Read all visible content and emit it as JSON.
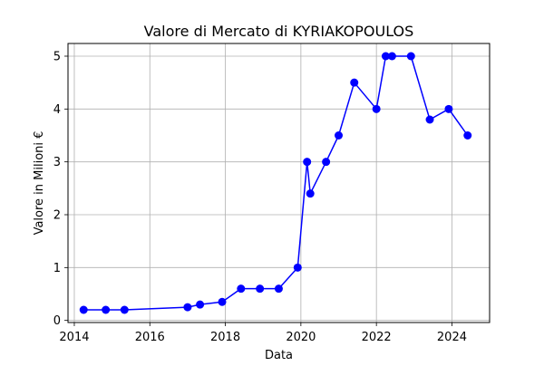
{
  "chart_data": {
    "type": "line",
    "title": "Valore di Mercato di KYRIAKOPOULOS",
    "xlabel": "Data",
    "ylabel": "Valore in Milioni €",
    "xlim": [
      "2013-11-01",
      "2024-12-31"
    ],
    "ylim": [
      -0.04,
      5.24
    ],
    "xticks": [
      "2014",
      "2016",
      "2018",
      "2020",
      "2022",
      "2024"
    ],
    "yticks": [
      "0",
      "1",
      "2",
      "3",
      "4",
      "5"
    ],
    "grid": true,
    "line_color": "#0000ff",
    "marker": "circle",
    "series": [
      {
        "x": [
          "2014-04-01",
          "2014-11-01",
          "2015-05-01",
          "2017-01-01",
          "2017-05-01",
          "2017-12-01",
          "2018-06-01",
          "2018-12-01",
          "2019-06-01",
          "2019-12-01",
          "2020-03-01",
          "2020-04-01",
          "2020-09-01",
          "2021-01-01",
          "2021-06-01",
          "2022-01-01",
          "2022-04-01",
          "2022-06-01",
          "2022-12-01",
          "2023-06-01",
          "2023-12-01",
          "2024-06-01"
        ],
        "values": [
          0.2,
          0.2,
          0.2,
          0.25,
          0.3,
          0.35,
          0.6,
          0.6,
          0.6,
          1.0,
          3.0,
          2.4,
          3.0,
          3.5,
          4.5,
          4.0,
          5.0,
          5.0,
          5.0,
          3.8,
          4.0,
          3.5
        ]
      }
    ]
  }
}
